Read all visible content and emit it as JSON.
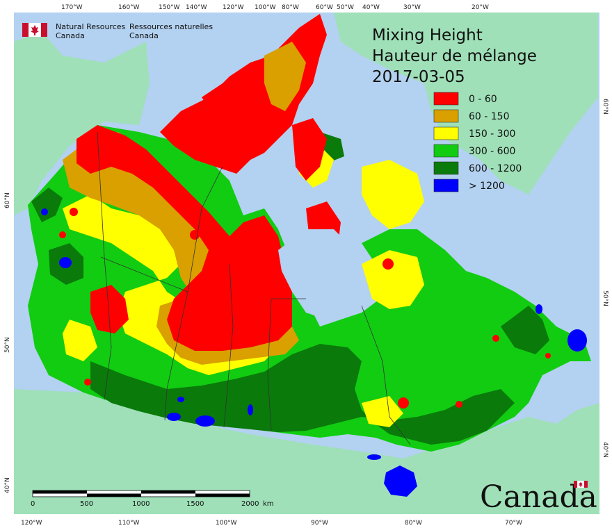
{
  "title": {
    "line1": "Mixing Height",
    "line2": "Hauteur de mélange",
    "date": "2017-03-05"
  },
  "agency": {
    "en_line1": "Natural Resources",
    "en_line2": "Canada",
    "fr_line1": "Ressources naturelles",
    "fr_line2": "Canada"
  },
  "wordmark": "Canada",
  "legend": [
    {
      "label": "0 - 60",
      "color": "#ff0000"
    },
    {
      "label": "60 - 150",
      "color": "#d9a000"
    },
    {
      "label": "150 - 300",
      "color": "#ffff00"
    },
    {
      "label": "300 - 600",
      "color": "#11cc11"
    },
    {
      "label": "600 - 1200",
      "color": "#0a7a0a"
    },
    {
      "label": "> 1200",
      "color": "#0000ff"
    }
  ],
  "scale_bar": {
    "ticks": [
      "0",
      "500",
      "1000",
      "1500",
      "2000"
    ],
    "unit": "km"
  },
  "graticule": {
    "top": [
      "170°W",
      "160°W",
      "150°W",
      "140°W",
      "120°W",
      "100°W",
      "80°W",
      "60°W",
      "50°W",
      "40°W",
      "30°W",
      "20°W"
    ],
    "bottom": [
      "120°W",
      "110°W",
      "100°W",
      "90°W",
      "80°W",
      "70°W"
    ],
    "left": [
      "60°N",
      "50°N",
      "40°N"
    ],
    "right": [
      "60°N",
      "50°N",
      "40°N"
    ]
  },
  "colors": {
    "ocean": "#b3d1f0",
    "land_outside": "#9fe0b8"
  }
}
